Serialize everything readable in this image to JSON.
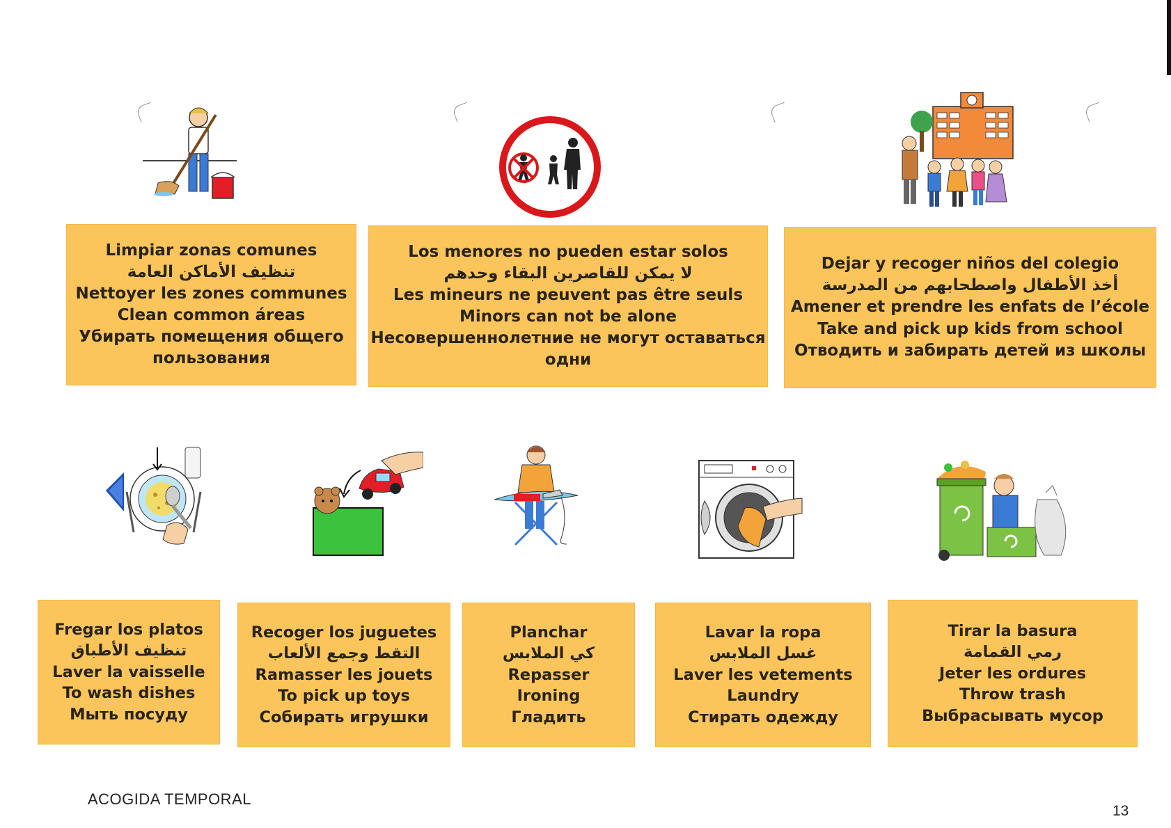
{
  "cards_top": [
    {
      "lines": [
        "Limpiar zonas comunes",
        "تنظيف الأماكن العامة",
        "Nettoyer les zones communes",
        "Clean common áreas",
        "Убирать помещения общего",
        "пользования"
      ]
    },
    {
      "lines": [
        "Los menores no pueden estar solos",
        "لا يمكن للقاصرين البقاء وحدهم",
        "Les mineurs ne peuvent pas être seuls",
        "Minors can not be alone",
        "Несовершеннолетние не могут оставаться",
        "одни"
      ]
    },
    {
      "lines": [
        "Dejar y recoger niños del colegio",
        "أخذ الأطفال واصطحابهم من المدرسة",
        "Amener et prendre les enfats de l’école",
        "Take and pick up kids from school",
        "Отводить и забирать детей из школы"
      ]
    }
  ],
  "cards_bottom": [
    {
      "lines": [
        "Fregar los platos",
        "تنظيف الأطباق",
        "Laver la vaisselle",
        "To wash dishes",
        "Мыть посуду"
      ]
    },
    {
      "lines": [
        "Recoger los juguetes",
        "التقط وجمع الألعاب",
        "Ramasser les jouets",
        "To pick up toys",
        "Собирать игрушки"
      ]
    },
    {
      "lines": [
        "Planchar",
        "كي الملابس",
        "Repasser",
        "Ironing",
        "Гладить"
      ]
    },
    {
      "lines": [
        "Lavar la ropa",
        "غسل الملابس",
        "Laver les vetements",
        "Laundry",
        "Стирать одежду"
      ]
    },
    {
      "lines": [
        "Tirar la basura",
        "رمي القمامة",
        "Jeter les ordures",
        "Throw trash",
        "Выбрасывать мусор"
      ]
    }
  ],
  "pictograms": {
    "top": [
      "person-sweeping-icon",
      "no-unaccompanied-minors-sign-icon",
      "school-pickup-icon"
    ],
    "bottom": [
      "washing-dishes-icon",
      "putting-away-toys-icon",
      "ironing-icon",
      "washing-machine-icon",
      "recycling-bins-icon"
    ]
  },
  "footer": {
    "title": "ACOGIDA TEMPORAL",
    "page_number": "13"
  },
  "colors": {
    "card": "#fcc55c",
    "sign_red": "#d9181c",
    "box_green": "#3cc23c"
  }
}
